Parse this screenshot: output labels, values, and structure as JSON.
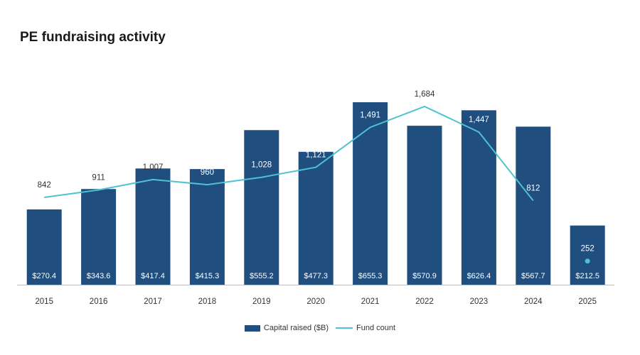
{
  "chart_data": {
    "type": "bar",
    "title": "PE fundraising activity",
    "categories": [
      "2015",
      "2016",
      "2017",
      "2018",
      "2019",
      "2020",
      "2021",
      "2022",
      "2023",
      "2024",
      "2025"
    ],
    "series": [
      {
        "name": "Capital raised ($B)",
        "kind": "bar",
        "color": "#1f4e7f",
        "values": [
          270.4,
          343.6,
          417.4,
          415.3,
          555.2,
          477.3,
          655.3,
          570.9,
          626.4,
          567.7,
          212.5
        ],
        "labels": [
          "$270.4",
          "$343.6",
          "$417.4",
          "$415.3",
          "$555.2",
          "$477.3",
          "$655.3",
          "$570.9",
          "$626.4",
          "$567.7",
          "$212.5"
        ]
      },
      {
        "name": "Fund count",
        "kind": "line",
        "color": "#4ec3d0",
        "values": [
          842,
          911,
          1007,
          960,
          1028,
          1121,
          1491,
          1684,
          1447,
          812,
          252
        ],
        "labels": [
          "842",
          "911",
          "1,007",
          "960",
          "1,028",
          "1,121",
          "1,491",
          "1,684",
          "1,447",
          "812",
          "252"
        ],
        "line_break_before_last": true
      }
    ],
    "ylim_bar": [
      0,
      800
    ],
    "ylim_line": [
      0,
      2050
    ],
    "grid": false,
    "legend_position": "bottom-center"
  }
}
